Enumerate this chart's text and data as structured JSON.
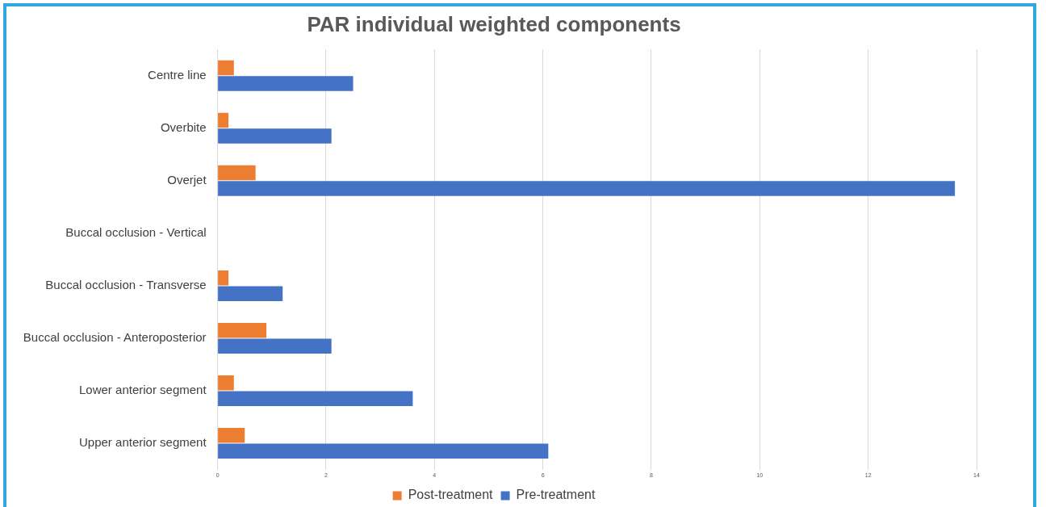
{
  "chart_data": {
    "type": "bar",
    "orientation": "horizontal",
    "title": "PAR individual weighted components",
    "categories": [
      "Centre line",
      "Overbite",
      "Overjet",
      "Buccal occlusion - Vertical",
      "Buccal occlusion - Transverse",
      "Buccal occlusion - Anteroposterior",
      "Lower anterior segment",
      "Upper anterior segment"
    ],
    "series": [
      {
        "name": "Post-treatment",
        "color": "#ed7d31",
        "values": [
          0.3,
          0.2,
          0.7,
          0,
          0.2,
          0.9,
          0.3,
          0.5
        ]
      },
      {
        "name": "Pre-treatment",
        "color": "#4472c4",
        "values": [
          2.5,
          2.1,
          13.6,
          0,
          1.2,
          2.1,
          3.6,
          6.1
        ]
      }
    ],
    "xlim": [
      0,
      14
    ],
    "xticks": [
      0,
      2,
      4,
      6,
      8,
      10,
      12,
      14
    ],
    "grid": "x",
    "legend": "bottom"
  }
}
